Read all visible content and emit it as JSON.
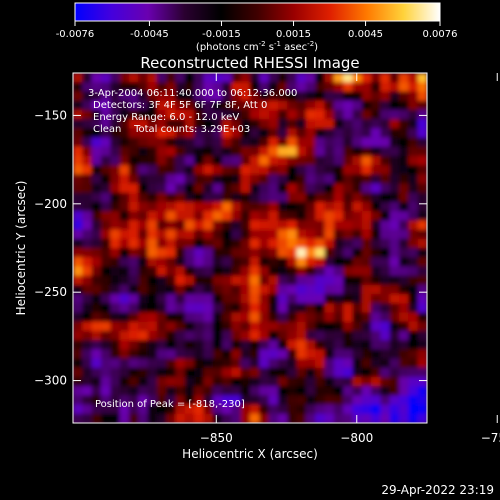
{
  "colorbar": {
    "ticks": [
      "-0.0076",
      "-0.0045",
      "-0.0015",
      "0.0015",
      "0.0045",
      "0.0076"
    ],
    "range": [
      -0.0076,
      0.0076
    ],
    "units_parts": [
      "(photons cm",
      "-2",
      " s",
      "-1",
      " asec",
      "-2",
      ")"
    ],
    "colors": [
      "#0000ff",
      "#4400dd",
      "#6a00b0",
      "#2a0030",
      "#000000",
      "#400000",
      "#9a0000",
      "#e02000",
      "#ff7a00",
      "#ffd23a",
      "#ffffff"
    ]
  },
  "annotations": {
    "time_line": "3-Apr-2004 06:11:40.000 to 06:12:36.000",
    "detectors_line": "Detectors: 3F 4F 5F 6F 7F 8F, Att 0",
    "energy_line": "Energy Range: 6.0 - 12.0 keV",
    "clean_line": "Clean    Total counts: 3.29E+03",
    "peak_line": "Position of Peak = [-818,-230]"
  },
  "footer": {
    "timestamp": "29-Apr-2022 23:19"
  },
  "chart_data": {
    "type": "heatmap",
    "title": "Reconstructed RHESSI Image",
    "xlabel": "Heliocentric X (arcsec)",
    "ylabel": "Heliocentric Y (arcsec)",
    "xlim": [
      -901,
      -775
    ],
    "ylim": [
      -324,
      -126
    ],
    "xticks": [
      -850,
      -800,
      -750
    ],
    "xtick_labels": [
      "−850",
      "−800",
      "−750"
    ],
    "yticks": [
      -150,
      -200,
      -250,
      -300
    ],
    "ytick_labels": [
      "−150",
      "−200",
      "−250",
      "−300"
    ],
    "peak": {
      "x": -818,
      "y": -230,
      "value": 0.0076
    },
    "secondary_sources": [
      {
        "x": -885,
        "y": -190,
        "value": 0.0042
      },
      {
        "x": -791,
        "y": -203,
        "value": 0.0038
      },
      {
        "x": -845,
        "y": -209,
        "value": 0.0036
      },
      {
        "x": -832,
        "y": -172,
        "value": 0.003
      },
      {
        "x": -800,
        "y": -165,
        "value": 0.0028
      }
    ]
  }
}
